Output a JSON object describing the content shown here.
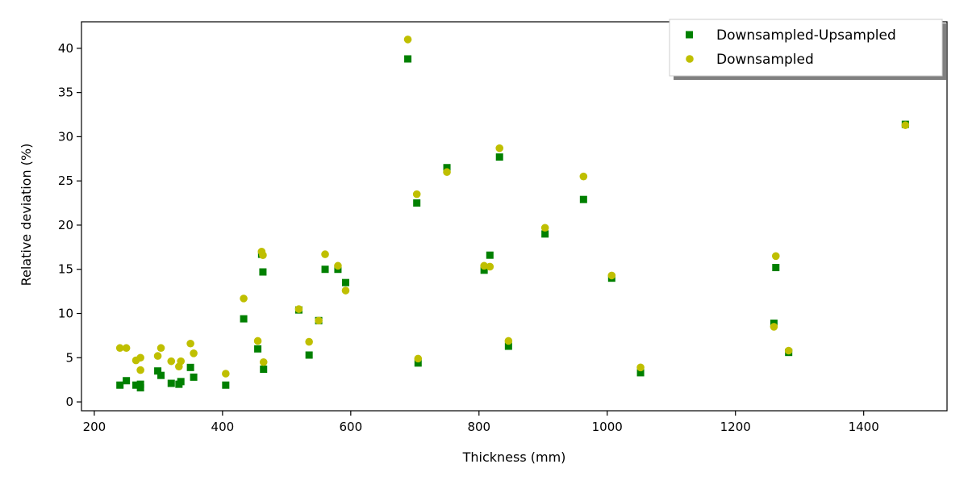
{
  "chart_data": {
    "type": "scatter",
    "xlabel": "Thickness (mm)",
    "ylabel": "Relative deviation (%)",
    "xlim": [
      180,
      1530
    ],
    "ylim": [
      -1,
      43
    ],
    "x_ticks": [
      200,
      400,
      600,
      800,
      1000,
      1200,
      1400
    ],
    "y_ticks": [
      0,
      5,
      10,
      15,
      20,
      25,
      30,
      35,
      40
    ],
    "grid": false,
    "legend_position": "top-right",
    "series": [
      {
        "name": "Downsampled-Upsampled",
        "marker": "square",
        "color": "#008000",
        "points": [
          [
            240,
            1.9
          ],
          [
            250,
            2.4
          ],
          [
            265,
            1.9
          ],
          [
            272,
            2.0
          ],
          [
            272,
            1.6
          ],
          [
            299,
            3.5
          ],
          [
            304,
            3.0
          ],
          [
            320,
            2.1
          ],
          [
            332,
            2.0
          ],
          [
            335,
            2.3
          ],
          [
            350,
            3.9
          ],
          [
            355,
            2.8
          ],
          [
            405,
            1.9
          ],
          [
            433,
            9.4
          ],
          [
            455,
            6.0
          ],
          [
            461,
            16.7
          ],
          [
            463,
            14.7
          ],
          [
            464,
            3.7
          ],
          [
            519,
            10.4
          ],
          [
            535,
            5.3
          ],
          [
            550,
            9.2
          ],
          [
            560,
            15.0
          ],
          [
            580,
            15.0
          ],
          [
            592,
            13.5
          ],
          [
            689,
            38.8
          ],
          [
            703,
            22.5
          ],
          [
            705,
            4.4
          ],
          [
            750,
            26.5
          ],
          [
            808,
            14.9
          ],
          [
            817,
            16.6
          ],
          [
            832,
            27.7
          ],
          [
            846,
            6.3
          ],
          [
            903,
            19.0
          ],
          [
            963,
            22.9
          ],
          [
            1007,
            14.0
          ],
          [
            1052,
            3.3
          ],
          [
            1260,
            8.9
          ],
          [
            1263,
            15.2
          ],
          [
            1283,
            5.6
          ],
          [
            1465,
            31.4
          ]
        ]
      },
      {
        "name": "Downsampled",
        "marker": "circle",
        "color": "#bfbf00",
        "points": [
          [
            240,
            6.1
          ],
          [
            250,
            6.1
          ],
          [
            265,
            4.7
          ],
          [
            272,
            5.0
          ],
          [
            272,
            3.6
          ],
          [
            299,
            5.2
          ],
          [
            304,
            6.1
          ],
          [
            320,
            4.6
          ],
          [
            332,
            4.0
          ],
          [
            335,
            4.6
          ],
          [
            350,
            6.6
          ],
          [
            355,
            5.5
          ],
          [
            405,
            3.2
          ],
          [
            433,
            11.7
          ],
          [
            455,
            6.9
          ],
          [
            461,
            17.0
          ],
          [
            463,
            16.6
          ],
          [
            464,
            4.5
          ],
          [
            519,
            10.5
          ],
          [
            535,
            6.8
          ],
          [
            550,
            9.2
          ],
          [
            560,
            16.7
          ],
          [
            580,
            15.4
          ],
          [
            592,
            12.6
          ],
          [
            689,
            41.0
          ],
          [
            703,
            23.5
          ],
          [
            705,
            4.9
          ],
          [
            750,
            26.0
          ],
          [
            808,
            15.4
          ],
          [
            817,
            15.3
          ],
          [
            832,
            28.7
          ],
          [
            846,
            6.9
          ],
          [
            903,
            19.7
          ],
          [
            963,
            25.5
          ],
          [
            1007,
            14.3
          ],
          [
            1052,
            3.9
          ],
          [
            1260,
            8.5
          ],
          [
            1263,
            16.5
          ],
          [
            1283,
            5.8
          ],
          [
            1465,
            31.3
          ]
        ]
      }
    ]
  }
}
